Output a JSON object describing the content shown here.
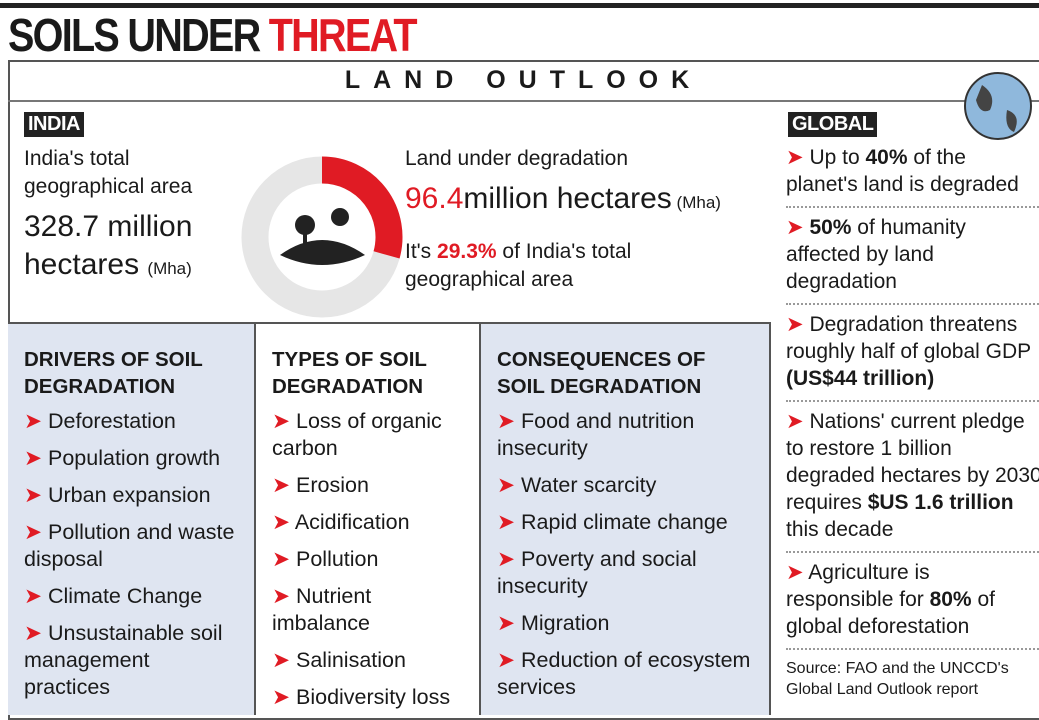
{
  "header": {
    "title_black": "SOILS UNDER",
    "title_red": "THREAT",
    "subtitle": "LAND OUTLOOK"
  },
  "india": {
    "label": "INDIA",
    "area_label": "India's total geographical area",
    "area_value": [
      {
        "text": "328.7 million hectares "
      },
      {
        "text": "(Mha)",
        "style": "small"
      }
    ],
    "degraded_label": "Land under degradation",
    "degraded_value": [
      {
        "text": "96.4",
        "style": "red"
      },
      {
        "text": "million hectares"
      },
      {
        "text": " (Mha)",
        "style": "small"
      }
    ],
    "share_before": "It's ",
    "share": {
      "value": 29.3,
      "label": "29.3%"
    },
    "share_after": " of India's total geographical area"
  },
  "global": {
    "label": "GLOBAL",
    "items": [
      [
        {
          "text": "Up to "
        },
        {
          "text": "40%",
          "style": "bold"
        },
        {
          "text": " of the planet's land is degraded"
        }
      ],
      [
        {
          "text": "50%",
          "style": "bold"
        },
        {
          "text": " of humanity affected by land degradation"
        }
      ],
      [
        {
          "text": "Degradation threatens roughly half of global GDP "
        },
        {
          "text": "(US$44 trillion)",
          "style": "bold"
        }
      ],
      [
        {
          "text": "Nations' current pledge to restore 1 billion degraded hectares by 2030 requires "
        },
        {
          "text": "$US 1.6 trillion",
          "style": "bold"
        },
        {
          "text": " this decade"
        }
      ],
      [
        {
          "text": "Agriculture is responsible for "
        },
        {
          "text": "80%",
          "style": "bold"
        },
        {
          "text": " of global deforestation"
        }
      ]
    ],
    "source": "Source: FAO and the UNCCD's Global Land Outlook report"
  },
  "columns": [
    {
      "title": "DRIVERS OF SOIL DEGRADATION",
      "items": [
        "Deforestation",
        "Population growth",
        "Urban expansion",
        "Pollution and waste disposal",
        "Climate Change",
        "Unsustainable soil management practices"
      ]
    },
    {
      "title": "TYPES OF SOIL DEGRADATION",
      "items": [
        "Loss of organic carbon",
        "Erosion",
        "Acidification",
        "Pollution",
        "Nutrient imbalance",
        "Salinisation",
        "Biodiversity loss"
      ]
    },
    {
      "title": "CONSEQUENCES OF SOIL DEGRADATION",
      "items": [
        "Food and nutrition insecurity",
        "Water scarcity",
        "Rapid climate change",
        "Poverty and social insecurity",
        "Migration",
        "Reduction of ecosystem services"
      ]
    }
  ]
}
